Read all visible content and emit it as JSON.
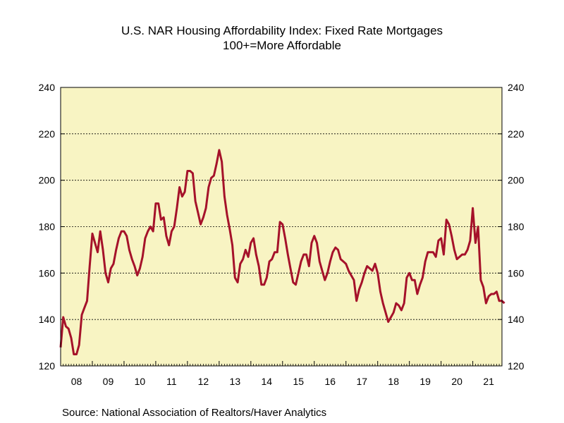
{
  "chart_data": {
    "type": "line",
    "title": "U.S. NAR Housing Affordability Index: Fixed Rate Mortgages",
    "subtitle": "100+=More Affordable",
    "source": "Source:  National Association of Realtors/Haver Analytics",
    "ylim": [
      120,
      240
    ],
    "y_ticks": [
      120,
      140,
      160,
      180,
      200,
      220,
      240
    ],
    "y_tick_labels": [
      "120",
      "140",
      "160",
      "180",
      "200",
      "220",
      "240"
    ],
    "x_range": [
      2008.0,
      2021.92
    ],
    "x_tick_labels": [
      {
        "label": "08",
        "year": 2008
      },
      {
        "label": "09",
        "year": 2009
      },
      {
        "label": "10",
        "year": 2010
      },
      {
        "label": "11",
        "year": 2011
      },
      {
        "label": "12",
        "year": 2012
      },
      {
        "label": "13",
        "year": 2013
      },
      {
        "label": "14",
        "year": 2014
      },
      {
        "label": "15",
        "year": 2015
      },
      {
        "label": "16",
        "year": 2016
      },
      {
        "label": "17",
        "year": 2017
      },
      {
        "label": "18",
        "year": 2018
      },
      {
        "label": "19",
        "year": 2019
      },
      {
        "label": "20",
        "year": 2020
      },
      {
        "label": "21",
        "year": 2021
      }
    ],
    "grid": "horizontal dotted",
    "colors": {
      "plot_background": "#f8f4c3",
      "line": "#a5122a",
      "grid": "#000000"
    },
    "series": [
      {
        "start_year": 2008,
        "frequency": "monthly",
        "values": [
          128,
          141,
          137,
          136,
          132,
          125,
          125,
          129,
          142,
          145,
          148,
          163,
          177,
          173,
          169,
          178,
          170,
          160,
          156,
          162,
          164,
          170,
          175,
          178,
          178,
          176,
          170,
          166,
          163,
          159,
          162,
          167,
          175,
          178,
          180,
          178,
          190,
          190,
          183,
          184,
          176,
          172,
          178,
          180,
          188,
          197,
          193,
          195,
          204,
          204,
          203,
          191,
          186,
          181,
          184,
          188,
          197,
          201,
          202,
          207,
          213,
          208,
          193,
          185,
          179,
          172,
          158,
          156,
          164,
          166,
          170,
          167,
          173,
          175,
          168,
          163,
          155,
          155,
          158,
          165,
          166,
          169,
          169,
          182,
          181,
          175,
          168,
          162,
          156,
          155,
          160,
          165,
          168,
          168,
          163,
          173,
          176,
          173,
          165,
          161,
          157,
          160,
          165,
          169,
          171,
          170,
          166,
          165,
          164,
          161,
          159,
          157,
          148,
          153,
          156,
          160,
          163,
          162,
          161,
          164,
          160,
          152,
          147,
          143,
          139,
          141,
          143,
          147,
          146,
          144,
          147,
          158,
          160,
          157,
          157,
          151,
          155,
          158,
          165,
          169,
          169,
          169,
          167,
          174,
          175,
          168,
          183,
          181,
          176,
          170,
          166,
          167,
          168,
          168,
          170,
          174,
          188,
          173,
          180,
          157,
          154,
          147,
          150,
          151,
          151,
          152,
          148,
          148,
          147
        ]
      }
    ]
  }
}
